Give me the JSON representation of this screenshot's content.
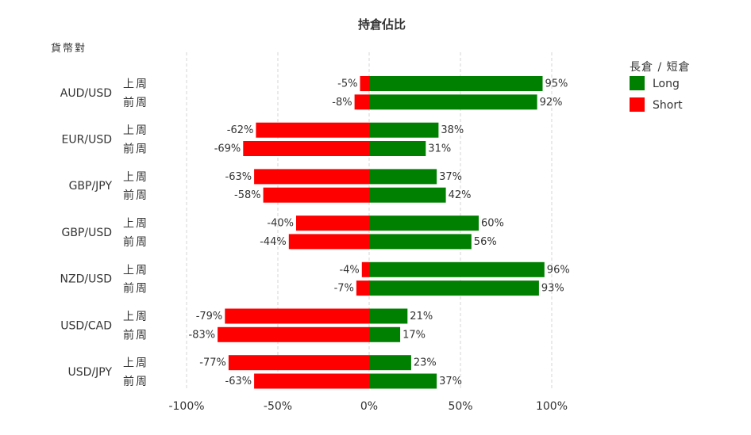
{
  "chart_data": {
    "type": "bar",
    "orientation": "horizontal-diverging",
    "title": "持倉佔比",
    "ylabel": "貨幣對",
    "categories": [
      "AUD/USD",
      "EUR/USD",
      "GBP/JPY",
      "GBP/USD",
      "NZD/USD",
      "USD/CAD",
      "USD/JPY"
    ],
    "periods": [
      "上周",
      "前周"
    ],
    "x_ticks": [
      "-100%",
      "-50%",
      "0%",
      "50%",
      "100%"
    ],
    "xlim": [
      -100,
      100
    ],
    "grid": "vertical dashed",
    "legend": {
      "title": "長倉 / 短倉",
      "position": "top-right",
      "items": [
        {
          "name": "Long",
          "color": "#008000"
        },
        {
          "name": "Short",
          "color": "#ff0000"
        }
      ]
    },
    "series": [
      {
        "name": "Long",
        "color": "#008000",
        "values": [
          [
            95,
            92
          ],
          [
            38,
            31
          ],
          [
            37,
            42
          ],
          [
            60,
            56
          ],
          [
            96,
            93
          ],
          [
            21,
            17
          ],
          [
            23,
            37
          ]
        ]
      },
      {
        "name": "Short",
        "color": "#ff0000",
        "values": [
          [
            -5,
            -8
          ],
          [
            -62,
            -69
          ],
          [
            -63,
            -58
          ],
          [
            -40,
            -44
          ],
          [
            -4,
            -7
          ],
          [
            -79,
            -83
          ],
          [
            -77,
            -63
          ]
        ]
      }
    ]
  }
}
